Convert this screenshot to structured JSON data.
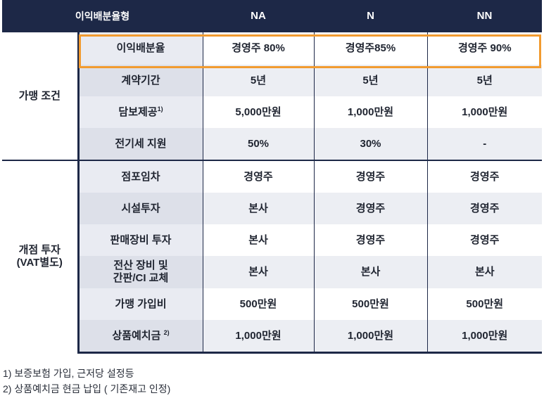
{
  "header": {
    "col0": "이익배분율형",
    "col1": "NA",
    "col2": "N",
    "col3": "NN"
  },
  "groups": {
    "join": "가맹 조건",
    "invest_line1": "개점 투자",
    "invest_line2": "(VAT별도)"
  },
  "rows": [
    {
      "label": "이익배분율",
      "na": "경영주 80%",
      "n": "경영주85%",
      "nn": "경영주 90%"
    },
    {
      "label": "계약기간",
      "na": "5년",
      "n": "5년",
      "nn": "5년"
    },
    {
      "label": "담보제공",
      "sup": "1)",
      "na": "5,000만원",
      "n": "1,000만원",
      "nn": "1,000만원"
    },
    {
      "label": "전기세 지원",
      "na": "50%",
      "n": "30%",
      "nn": "-"
    },
    {
      "label": "점포임차",
      "na": "경영주",
      "n": "경영주",
      "nn": "경영주"
    },
    {
      "label": "시설투자",
      "na": "본사",
      "n": "경영주",
      "nn": "경영주"
    },
    {
      "label": "판매장비 투자",
      "na": "본사",
      "n": "경영주",
      "nn": "경영주"
    },
    {
      "label_line1": "전산 장비 및",
      "label_line2": "간판/CI 교체",
      "na": "본사",
      "n": "본사",
      "nn": "본사"
    },
    {
      "label": "가맹 가입비",
      "na": "500만원",
      "n": "500만원",
      "nn": "500만원"
    },
    {
      "label": "상품예치금",
      "sup": "2)",
      "na": "1,000만원",
      "n": "1,000만원",
      "nn": "1,000만원"
    }
  ],
  "notes": [
    "1) 보증보험 가입, 근저당 설정등",
    "2) 상품예치금 현금 납입 ( 기존재고 인정)"
  ],
  "colors": {
    "header_bg": "#1d2847",
    "highlight": "#f29b30",
    "label_bg": "#e9ebf2"
  }
}
